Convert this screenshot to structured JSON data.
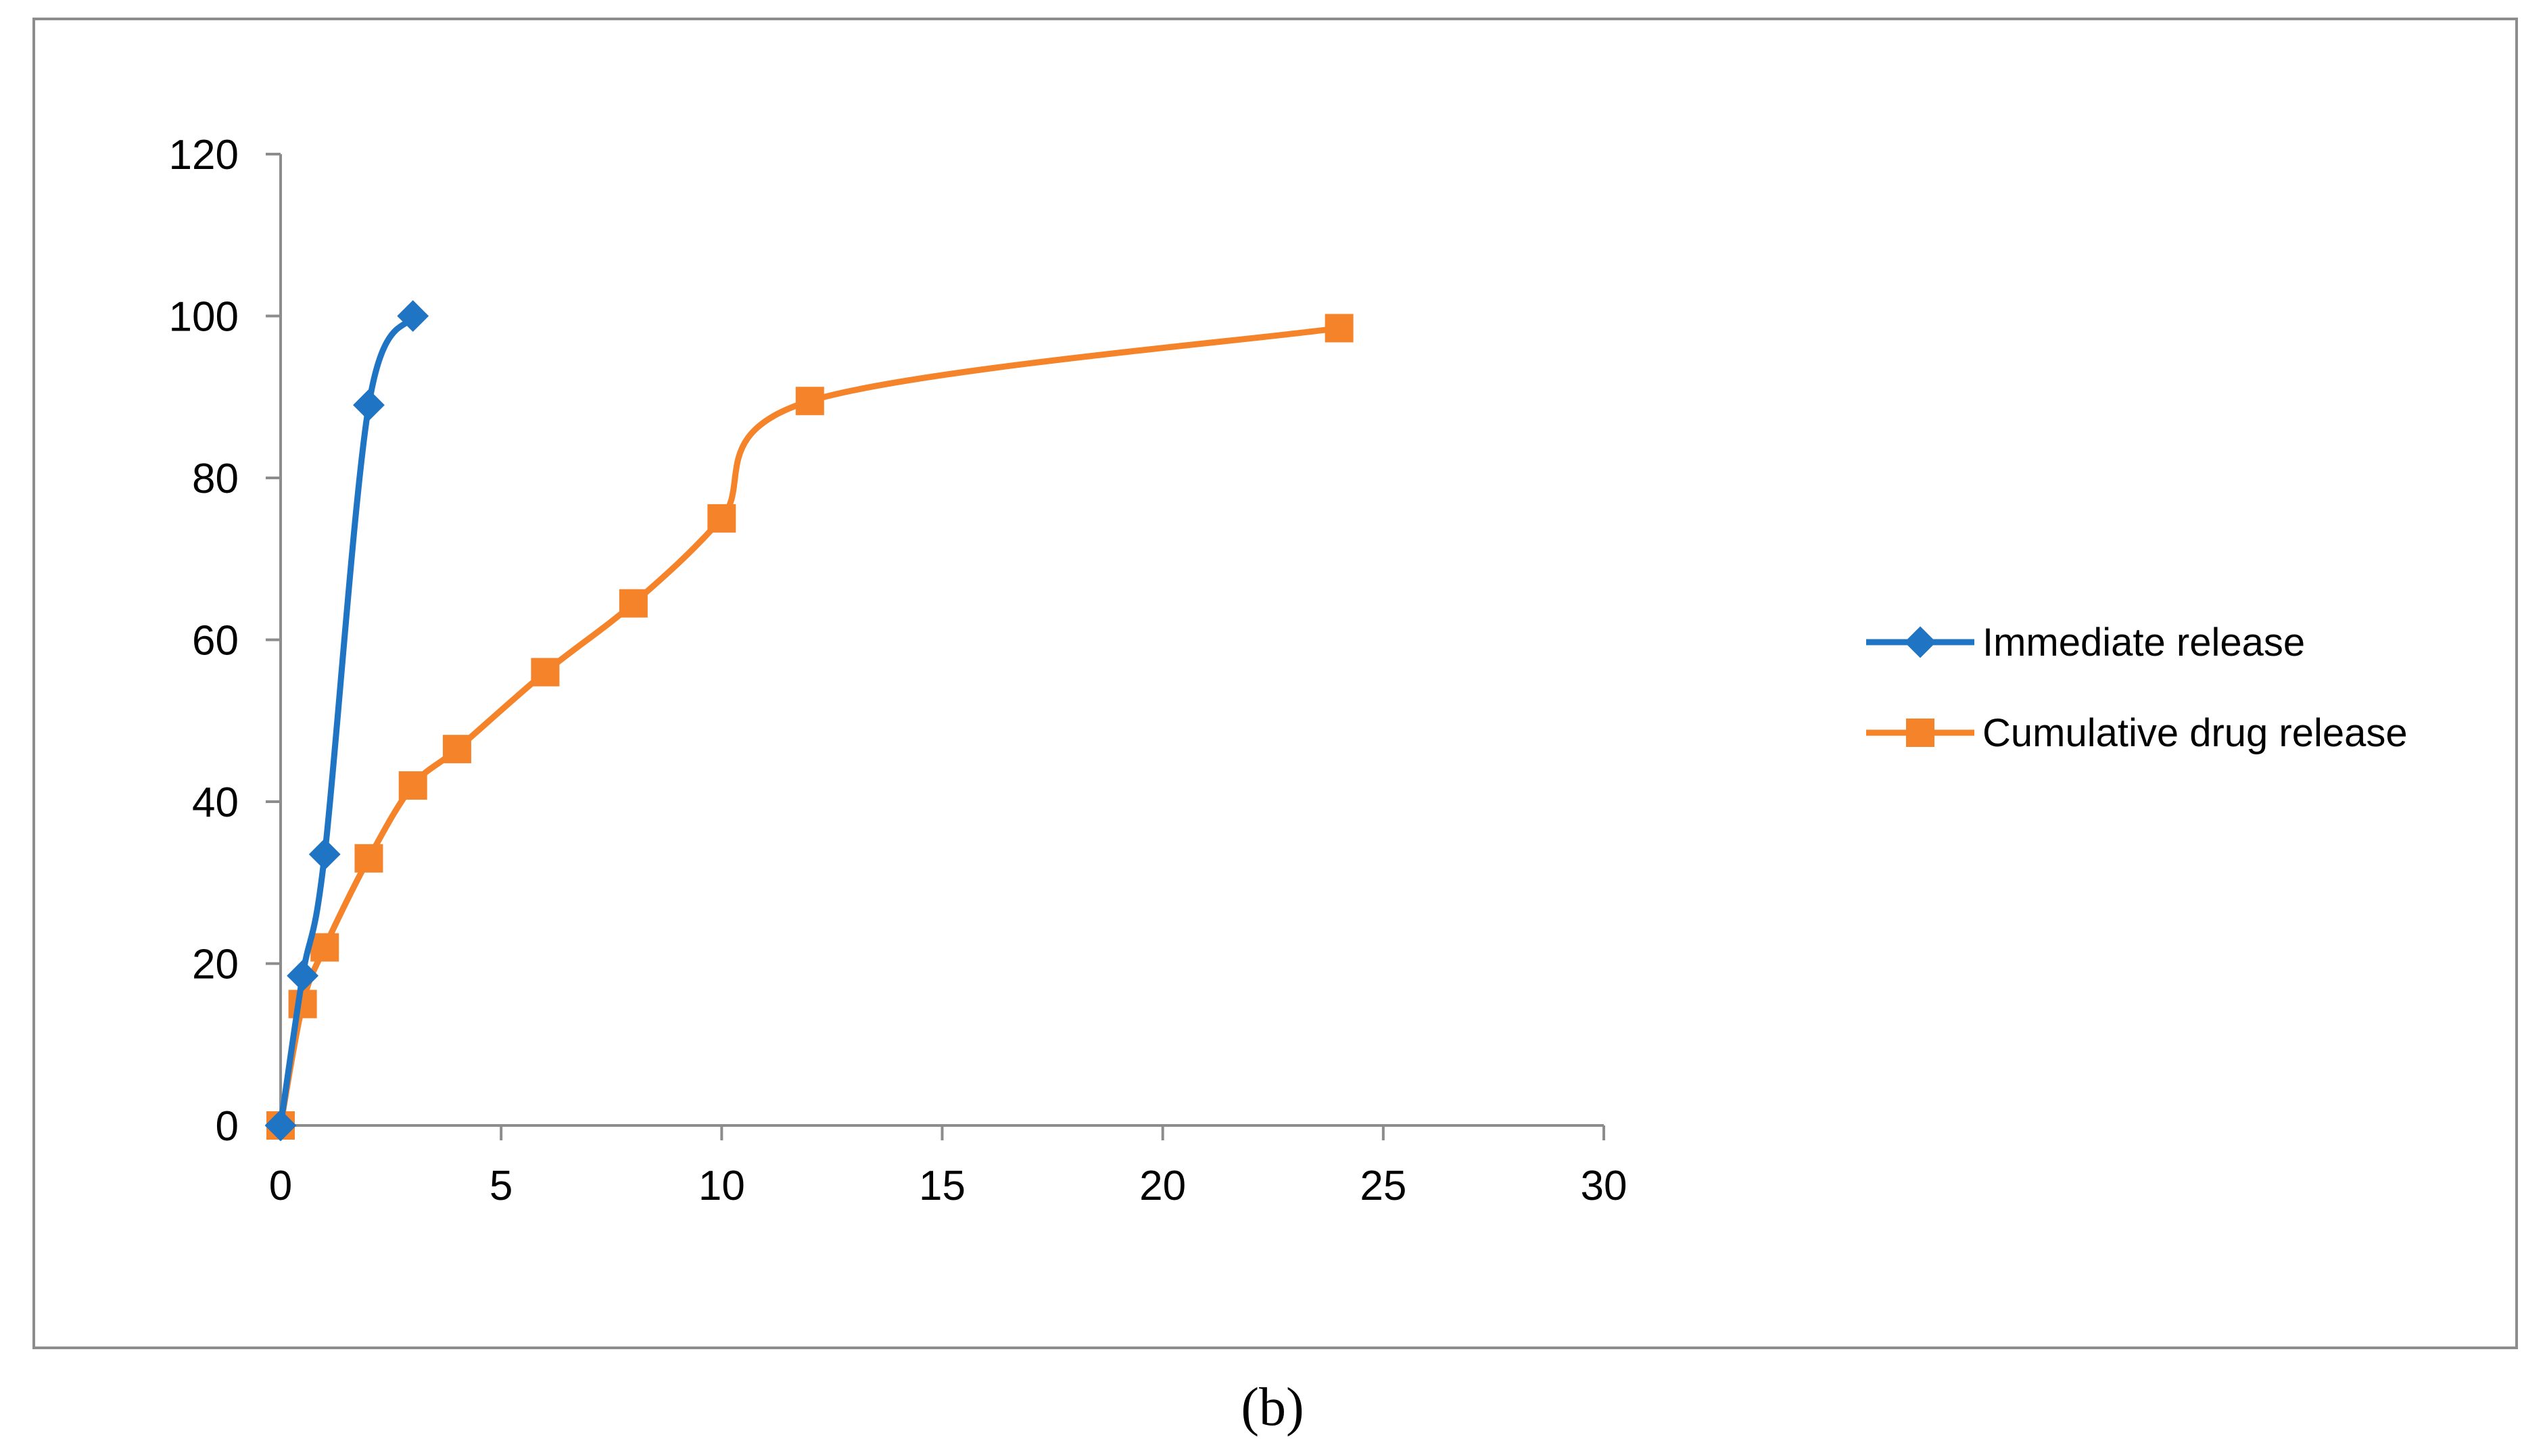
{
  "caption": "(b)",
  "chart_data": {
    "type": "line",
    "title": "",
    "xlabel": "",
    "ylabel": "",
    "xlim": [
      0,
      30
    ],
    "ylim": [
      0,
      120
    ],
    "x_ticks": [
      "0",
      "5",
      "10",
      "15",
      "20",
      "25",
      "30"
    ],
    "y_ticks": [
      "0",
      "20",
      "40",
      "60",
      "80",
      "100",
      "120"
    ],
    "grid": false,
    "smooth": true,
    "legend_position": "right",
    "series": [
      {
        "name": "Immediate release",
        "color": "#1f74c4",
        "marker": "diamond",
        "x": [
          0,
          0.5,
          1,
          2,
          3
        ],
        "y": [
          0,
          18.5,
          33.5,
          89,
          100
        ]
      },
      {
        "name": "Cumulative drug release",
        "color": "#f5832a",
        "marker": "square",
        "x": [
          0,
          0.5,
          1,
          2,
          3,
          4,
          6,
          8,
          10,
          12,
          24
        ],
        "y": [
          0,
          15,
          22,
          33,
          42,
          46.5,
          56,
          64.5,
          75,
          89.5,
          98.5
        ]
      }
    ]
  }
}
